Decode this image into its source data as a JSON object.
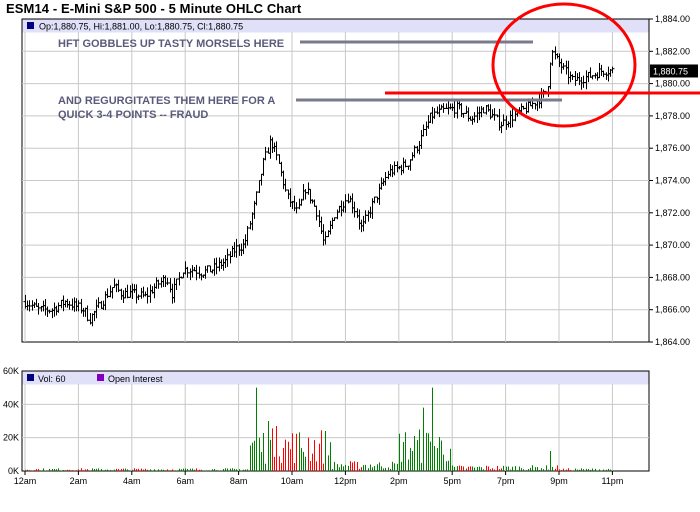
{
  "chart_data": [
    {
      "type": "ohlc",
      "title": "ESM14 - E-Mini S&P 500 - 5 Minute OHLC Chart",
      "info_line": "Op:1,880.75, Hi:1,881.00, Lo:1,880.75, Cl:1,880.75",
      "last_price_label": "1,880.75",
      "last_price": 1880.75,
      "ylim": [
        1864,
        1884
      ],
      "y_ticks": [
        1864,
        1866,
        1868,
        1870,
        1872,
        1874,
        1876,
        1878,
        1880,
        1882,
        1884
      ],
      "y_tick_labels": [
        "1,864.00",
        "1,866.00",
        "1,868.00",
        "1,870.00",
        "1,872.00",
        "1,874.00",
        "1,876.00",
        "1,878.00",
        "1,880.00",
        "1,882.00",
        "1,884.00"
      ],
      "x_labels": [
        "12am",
        "2am",
        "4am",
        "6am",
        "8am",
        "10am",
        "12pm",
        "2pm",
        "5pm",
        "7pm",
        "9pm",
        "11pm"
      ],
      "x_label_hours": [
        0,
        2,
        4,
        6,
        8,
        10,
        12,
        14,
        16,
        18,
        20,
        22
      ],
      "path_anchors": [
        [
          0.0,
          1866.5
        ],
        [
          0.5,
          1866.0
        ],
        [
          1.0,
          1866.0
        ],
        [
          1.5,
          1866.5
        ],
        [
          2.2,
          1866.0
        ],
        [
          2.4,
          1865.4
        ],
        [
          2.8,
          1866.3
        ],
        [
          3.3,
          1867.5
        ],
        [
          3.6,
          1867.0
        ],
        [
          4.0,
          1867.0
        ],
        [
          4.5,
          1866.8
        ],
        [
          4.9,
          1867.5
        ],
        [
          5.3,
          1868.0
        ],
        [
          5.5,
          1867.0
        ],
        [
          5.9,
          1868.5
        ],
        [
          6.3,
          1868.5
        ],
        [
          6.6,
          1868.3
        ],
        [
          7.0,
          1868.5
        ],
        [
          7.5,
          1869.0
        ],
        [
          7.9,
          1869.8
        ],
        [
          8.2,
          1870.0
        ],
        [
          8.6,
          1872.5
        ],
        [
          8.9,
          1875.0
        ],
        [
          9.2,
          1876.5
        ],
        [
          9.5,
          1875.0
        ],
        [
          9.8,
          1873.0
        ],
        [
          10.2,
          1872.0
        ],
        [
          10.5,
          1873.5
        ],
        [
          10.9,
          1872.2
        ],
        [
          11.2,
          1870.0
        ],
        [
          11.6,
          1872.0
        ],
        [
          12.1,
          1873.0
        ],
        [
          12.4,
          1872.0
        ],
        [
          12.6,
          1871.0
        ],
        [
          13.0,
          1872.5
        ],
        [
          13.6,
          1874.5
        ],
        [
          14.3,
          1875.0
        ],
        [
          14.8,
          1876.5
        ],
        [
          15.2,
          1878.0
        ],
        [
          15.6,
          1878.3
        ],
        [
          16.2,
          1878.5
        ],
        [
          16.7,
          1877.8
        ],
        [
          17.2,
          1878.5
        ],
        [
          17.8,
          1877.5
        ],
        [
          18.3,
          1878.0
        ],
        [
          18.8,
          1878.5
        ],
        [
          19.2,
          1879.0
        ],
        [
          19.55,
          1879.5
        ],
        [
          19.7,
          1882.0
        ],
        [
          19.9,
          1881.5
        ],
        [
          20.2,
          1880.8
        ],
        [
          20.5,
          1880.2
        ],
        [
          20.8,
          1880.3
        ],
        [
          21.2,
          1880.5
        ],
        [
          21.6,
          1880.8
        ],
        [
          22.0,
          1880.8
        ]
      ],
      "volume": {
        "legend": [
          "Vol: 60",
          "Open Interest"
        ],
        "ylim": [
          0,
          60000
        ],
        "y_ticks": [
          0,
          20000,
          40000,
          60000
        ],
        "y_tick_labels": [
          "0K",
          "20K",
          "40K",
          "60K"
        ],
        "spikes": [
          [
            8.65,
            50000
          ],
          [
            9.05,
            30000
          ],
          [
            9.45,
            27000
          ],
          [
            15.25,
            50000
          ],
          [
            14.9,
            38000
          ],
          [
            10.6,
            20000
          ],
          [
            19.7,
            12000
          ]
        ]
      },
      "annotations": [
        {
          "lines": [
            "HFT GOBBLES UP TASTY MORSELS HERE"
          ]
        },
        {
          "lines": [
            "AND REGURGITATES THEM HERE FOR A",
            "QUICK 3-4 POINTS --  FRAUD"
          ]
        }
      ],
      "colors": {
        "up": "#008000",
        "down": "#ff0000",
        "bar": "#000000",
        "info_band": "#e0e0f8",
        "grid": "#c8c8c8",
        "annot_line": "#7a7a8e",
        "red_line": "#ff0000",
        "vol_legend_box": "#000080",
        "oi_legend_box": "#8000c0"
      }
    }
  ]
}
